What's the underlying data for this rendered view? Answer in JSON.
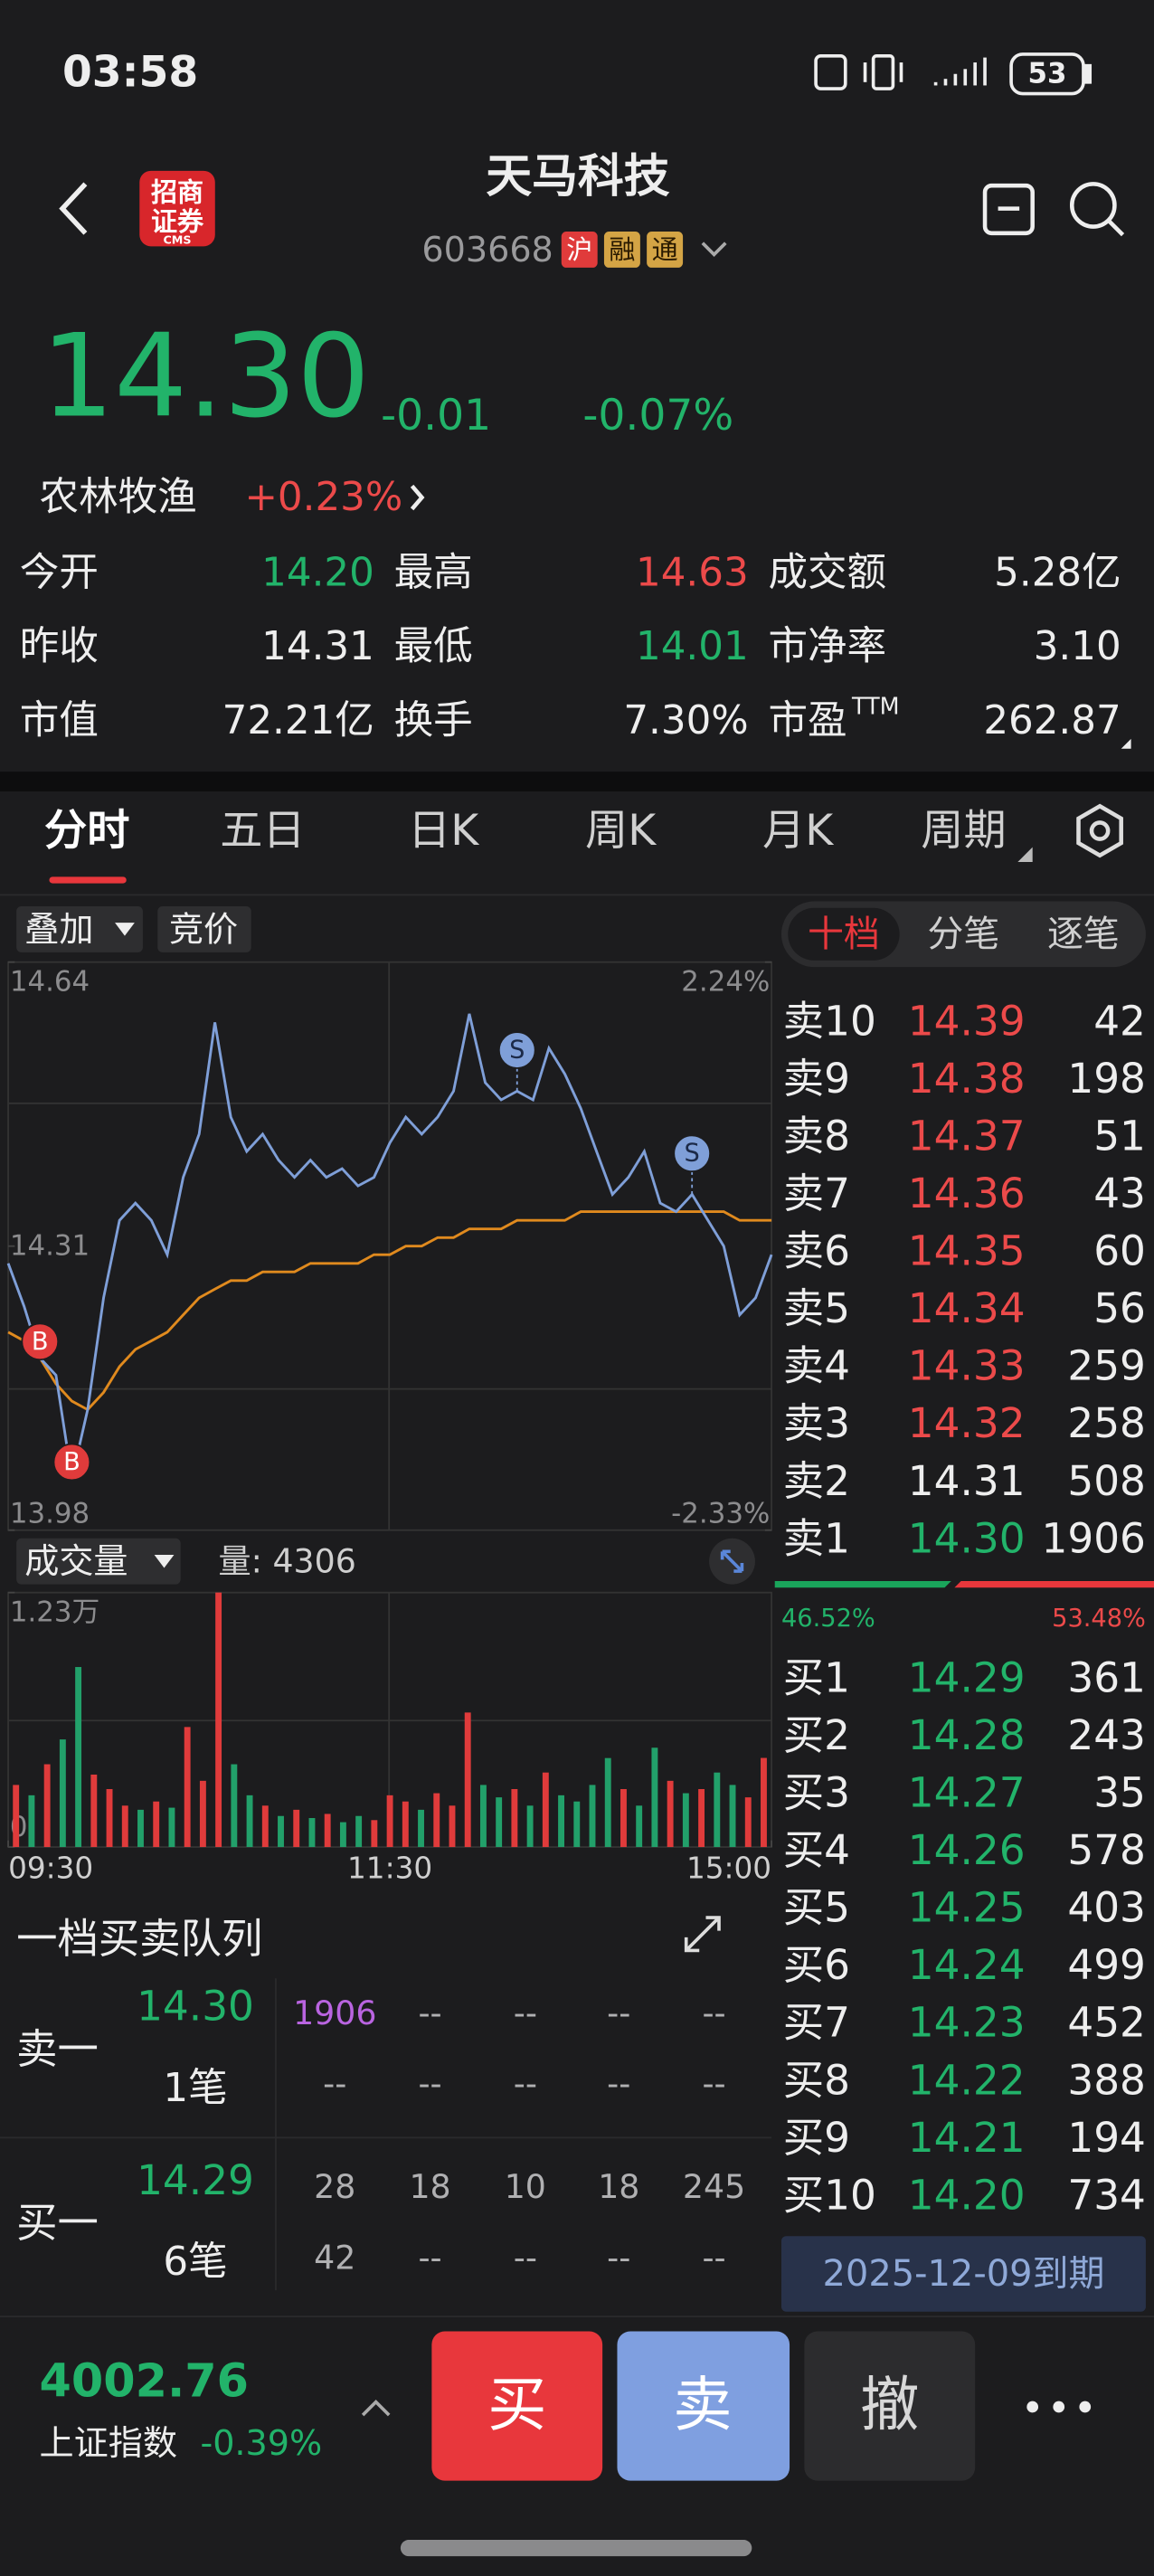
{
  "status_bar": {
    "time": "03:58",
    "battery": "53"
  },
  "header": {
    "name": "天马科技",
    "code": "603668",
    "badges": [
      {
        "text": "沪",
        "color": "#e03b3b"
      },
      {
        "text": "融",
        "color": "#d4a445"
      },
      {
        "text": "通",
        "color": "#d4a445"
      }
    ],
    "logo": [
      "招商",
      "证券",
      "CMS"
    ]
  },
  "quote": {
    "price": "14.30",
    "change": "-0.01",
    "change_pct": "-0.07%",
    "sector": "农林牧渔",
    "sector_change": "+0.23%"
  },
  "stats": [
    [
      {
        "label": "今开",
        "value": "14.20",
        "color": "#22b36a"
      },
      {
        "label": "最高",
        "value": "14.63",
        "color": "#ec4a4a"
      },
      {
        "label": "成交额",
        "value": "5.28亿",
        "color": "#eeeeee"
      }
    ],
    [
      {
        "label": "昨收",
        "value": "14.31",
        "color": "#eeeeee"
      },
      {
        "label": "最低",
        "value": "14.01",
        "color": "#22b36a"
      },
      {
        "label": "市净率",
        "value": "3.10",
        "color": "#eeeeee"
      }
    ],
    [
      {
        "label": "市值",
        "value": "72.21亿",
        "color": "#eeeeee"
      },
      {
        "label": "换手",
        "value": "7.30%",
        "color": "#eeeeee"
      },
      {
        "label": "市盈",
        "sup": "TTM",
        "value": "262.87",
        "color": "#eeeeee"
      }
    ]
  ],
  "tabs": [
    "分时",
    "五日",
    "日K",
    "周K",
    "月K",
    "周期"
  ],
  "chart_controls": {
    "overlay": "叠加",
    "auction": "竞价",
    "volume_label": "成交量",
    "volume_value": "量: 4306"
  },
  "intraday": {
    "type": "line",
    "ylim": [
      13.98,
      14.64
    ],
    "yticks": [
      14.64,
      14.31,
      13.98
    ],
    "y2lim": [
      -2.33,
      2.24
    ],
    "y2ticks": [
      {
        "value": 2.24,
        "label": "2.24%"
      },
      {
        "value": -2.33,
        "label": "-2.33%"
      }
    ],
    "xlim": [
      0,
      48
    ],
    "xticks": [
      {
        "value": 0,
        "label": "09:30"
      },
      {
        "value": 24,
        "label": "11:30"
      },
      {
        "value": 48,
        "label": "15:00"
      }
    ],
    "series": [
      {
        "name": "价格",
        "color": "#7f9fd8",
        "values": [
          14.29,
          14.24,
          14.18,
          14.16,
          14.04,
          14.12,
          14.25,
          14.34,
          14.36,
          14.34,
          14.3,
          14.39,
          14.44,
          14.57,
          14.46,
          14.42,
          14.44,
          14.41,
          14.39,
          14.41,
          14.39,
          14.4,
          14.38,
          14.39,
          14.43,
          14.46,
          14.44,
          14.46,
          14.49,
          14.58,
          14.5,
          14.48,
          14.49,
          14.48,
          14.54,
          14.51,
          14.47,
          14.42,
          14.37,
          14.39,
          14.42,
          14.36,
          14.35,
          14.37,
          14.34,
          14.31,
          14.23,
          14.25,
          14.3
        ]
      },
      {
        "name": "均价",
        "color": "#e08a1e",
        "values": [
          14.21,
          14.2,
          14.18,
          14.15,
          14.13,
          14.12,
          14.14,
          14.17,
          14.19,
          14.2,
          14.21,
          14.23,
          14.25,
          14.26,
          14.27,
          14.27,
          14.28,
          14.28,
          14.28,
          14.29,
          14.29,
          14.29,
          14.29,
          14.3,
          14.3,
          14.31,
          14.31,
          14.32,
          14.32,
          14.33,
          14.33,
          14.33,
          14.34,
          14.34,
          14.34,
          14.34,
          14.35,
          14.35,
          14.35,
          14.35,
          14.35,
          14.35,
          14.35,
          14.35,
          14.35,
          14.35,
          14.34,
          14.34,
          14.34
        ]
      }
    ],
    "markers": [
      {
        "label": "B",
        "index": 2,
        "color": "#e03b3b"
      },
      {
        "label": "B",
        "index": 4,
        "color": "#e03b3b"
      },
      {
        "label": "S",
        "index": 32,
        "color": "#7f9fd8"
      },
      {
        "label": "S",
        "index": 43,
        "color": "#7f9fd8"
      }
    ]
  },
  "volume": {
    "type": "bar",
    "ylim": [
      0,
      12300
    ],
    "yticks": [
      {
        "value": 12300,
        "label": "1.23万"
      },
      0
    ],
    "values": [
      3000,
      2500,
      4000,
      5200,
      8700,
      3500,
      2800,
      2000,
      1800,
      2200,
      1900,
      5800,
      3200,
      12300,
      4000,
      2500,
      2000,
      1500,
      1800,
      1400,
      1600,
      1200,
      1500,
      1300,
      2500,
      2200,
      1800,
      2600,
      2000,
      6500,
      3000,
      2400,
      2800,
      2000,
      3600,
      2500,
      2200,
      3000,
      4300,
      2800,
      2000,
      4800,
      3200,
      2600,
      2800,
      3600,
      3000,
      2400,
      4306
    ],
    "colors": [
      "#e03b3b",
      "#22a06a",
      "#e03b3b",
      "#22a06a",
      "#22a06a",
      "#e03b3b",
      "#e03b3b",
      "#e03b3b",
      "#22a06a",
      "#e03b3b",
      "#22a06a",
      "#e03b3b",
      "#e03b3b",
      "#e03b3b",
      "#22a06a",
      "#22a06a",
      "#e03b3b",
      "#22a06a",
      "#e03b3b",
      "#22a06a",
      "#e03b3b",
      "#22a06a",
      "#22a06a",
      "#e03b3b",
      "#e03b3b",
      "#e03b3b",
      "#22a06a",
      "#e03b3b",
      "#e03b3b",
      "#e03b3b",
      "#22a06a",
      "#22a06a",
      "#e03b3b",
      "#22a06a",
      "#e03b3b",
      "#22a06a",
      "#22a06a",
      "#22a06a",
      "#22a06a",
      "#e03b3b",
      "#22a06a",
      "#22a06a",
      "#e03b3b",
      "#22a06a",
      "#e03b3b",
      "#22a06a",
      "#22a06a",
      "#e03b3b",
      "#e03b3b"
    ]
  },
  "order_book": {
    "tabs": [
      "十档",
      "分笔",
      "逐笔"
    ],
    "asks": [
      {
        "label": "卖10",
        "price": "14.39",
        "volume": "42",
        "color": "#ec4a4a"
      },
      {
        "label": "卖9",
        "price": "14.38",
        "volume": "198",
        "color": "#ec4a4a"
      },
      {
        "label": "卖8",
        "price": "14.37",
        "volume": "51",
        "color": "#ec4a4a"
      },
      {
        "label": "卖7",
        "price": "14.36",
        "volume": "43",
        "color": "#ec4a4a"
      },
      {
        "label": "卖6",
        "price": "14.35",
        "volume": "60",
        "color": "#ec4a4a"
      },
      {
        "label": "卖5",
        "price": "14.34",
        "volume": "56",
        "color": "#ec4a4a"
      },
      {
        "label": "卖4",
        "price": "14.33",
        "volume": "259",
        "color": "#ec4a4a"
      },
      {
        "label": "卖3",
        "price": "14.32",
        "volume": "258",
        "color": "#ec4a4a"
      },
      {
        "label": "卖2",
        "price": "14.31",
        "volume": "508",
        "color": "#eeeeee"
      },
      {
        "label": "卖1",
        "price": "14.30",
        "volume": "1906",
        "color": "#22b36a"
      }
    ],
    "ratio": {
      "buy": {
        "value": 46.52,
        "label": "46.52%"
      },
      "sell": {
        "value": 53.48,
        "label": "53.48%"
      }
    },
    "bids": [
      {
        "label": "买1",
        "price": "14.29",
        "volume": "361",
        "color": "#22b36a"
      },
      {
        "label": "买2",
        "price": "14.28",
        "volume": "243",
        "color": "#22b36a"
      },
      {
        "label": "买3",
        "price": "14.27",
        "volume": "35",
        "color": "#22b36a"
      },
      {
        "label": "买4",
        "price": "14.26",
        "volume": "578",
        "color": "#22b36a"
      },
      {
        "label": "买5",
        "price": "14.25",
        "volume": "403",
        "color": "#22b36a"
      },
      {
        "label": "买6",
        "price": "14.24",
        "volume": "499",
        "color": "#22b36a"
      },
      {
        "label": "买7",
        "price": "14.23",
        "volume": "452",
        "color": "#22b36a"
      },
      {
        "label": "买8",
        "price": "14.22",
        "volume": "388",
        "color": "#22b36a"
      },
      {
        "label": "买9",
        "price": "14.21",
        "volume": "194",
        "color": "#22b36a"
      },
      {
        "label": "买10",
        "price": "14.20",
        "volume": "734",
        "color": "#22b36a"
      }
    ],
    "expiry": "2025-12-09到期"
  },
  "queue": {
    "title": "一档买卖队列",
    "rows": [
      {
        "side": "卖一",
        "price": "14.30",
        "count": "1笔",
        "cells": [
          [
            "1906",
            "--",
            "--",
            "--",
            "--"
          ],
          [
            "--",
            "--",
            "--",
            "--",
            "--"
          ]
        ],
        "highlight": {
          "line": 0,
          "cell": 0,
          "color": "#b964e0"
        }
      },
      {
        "side": "买一",
        "price": "14.29",
        "count": "6笔",
        "cells": [
          [
            "28",
            "18",
            "10",
            "18",
            "245"
          ],
          [
            "42",
            "--",
            "--",
            "--",
            "--"
          ]
        ]
      }
    ]
  },
  "footer": {
    "index_value": "4002.76",
    "index_name": "上证指数",
    "index_change": "-0.39%",
    "buttons": [
      "买",
      "卖",
      "撤"
    ]
  }
}
